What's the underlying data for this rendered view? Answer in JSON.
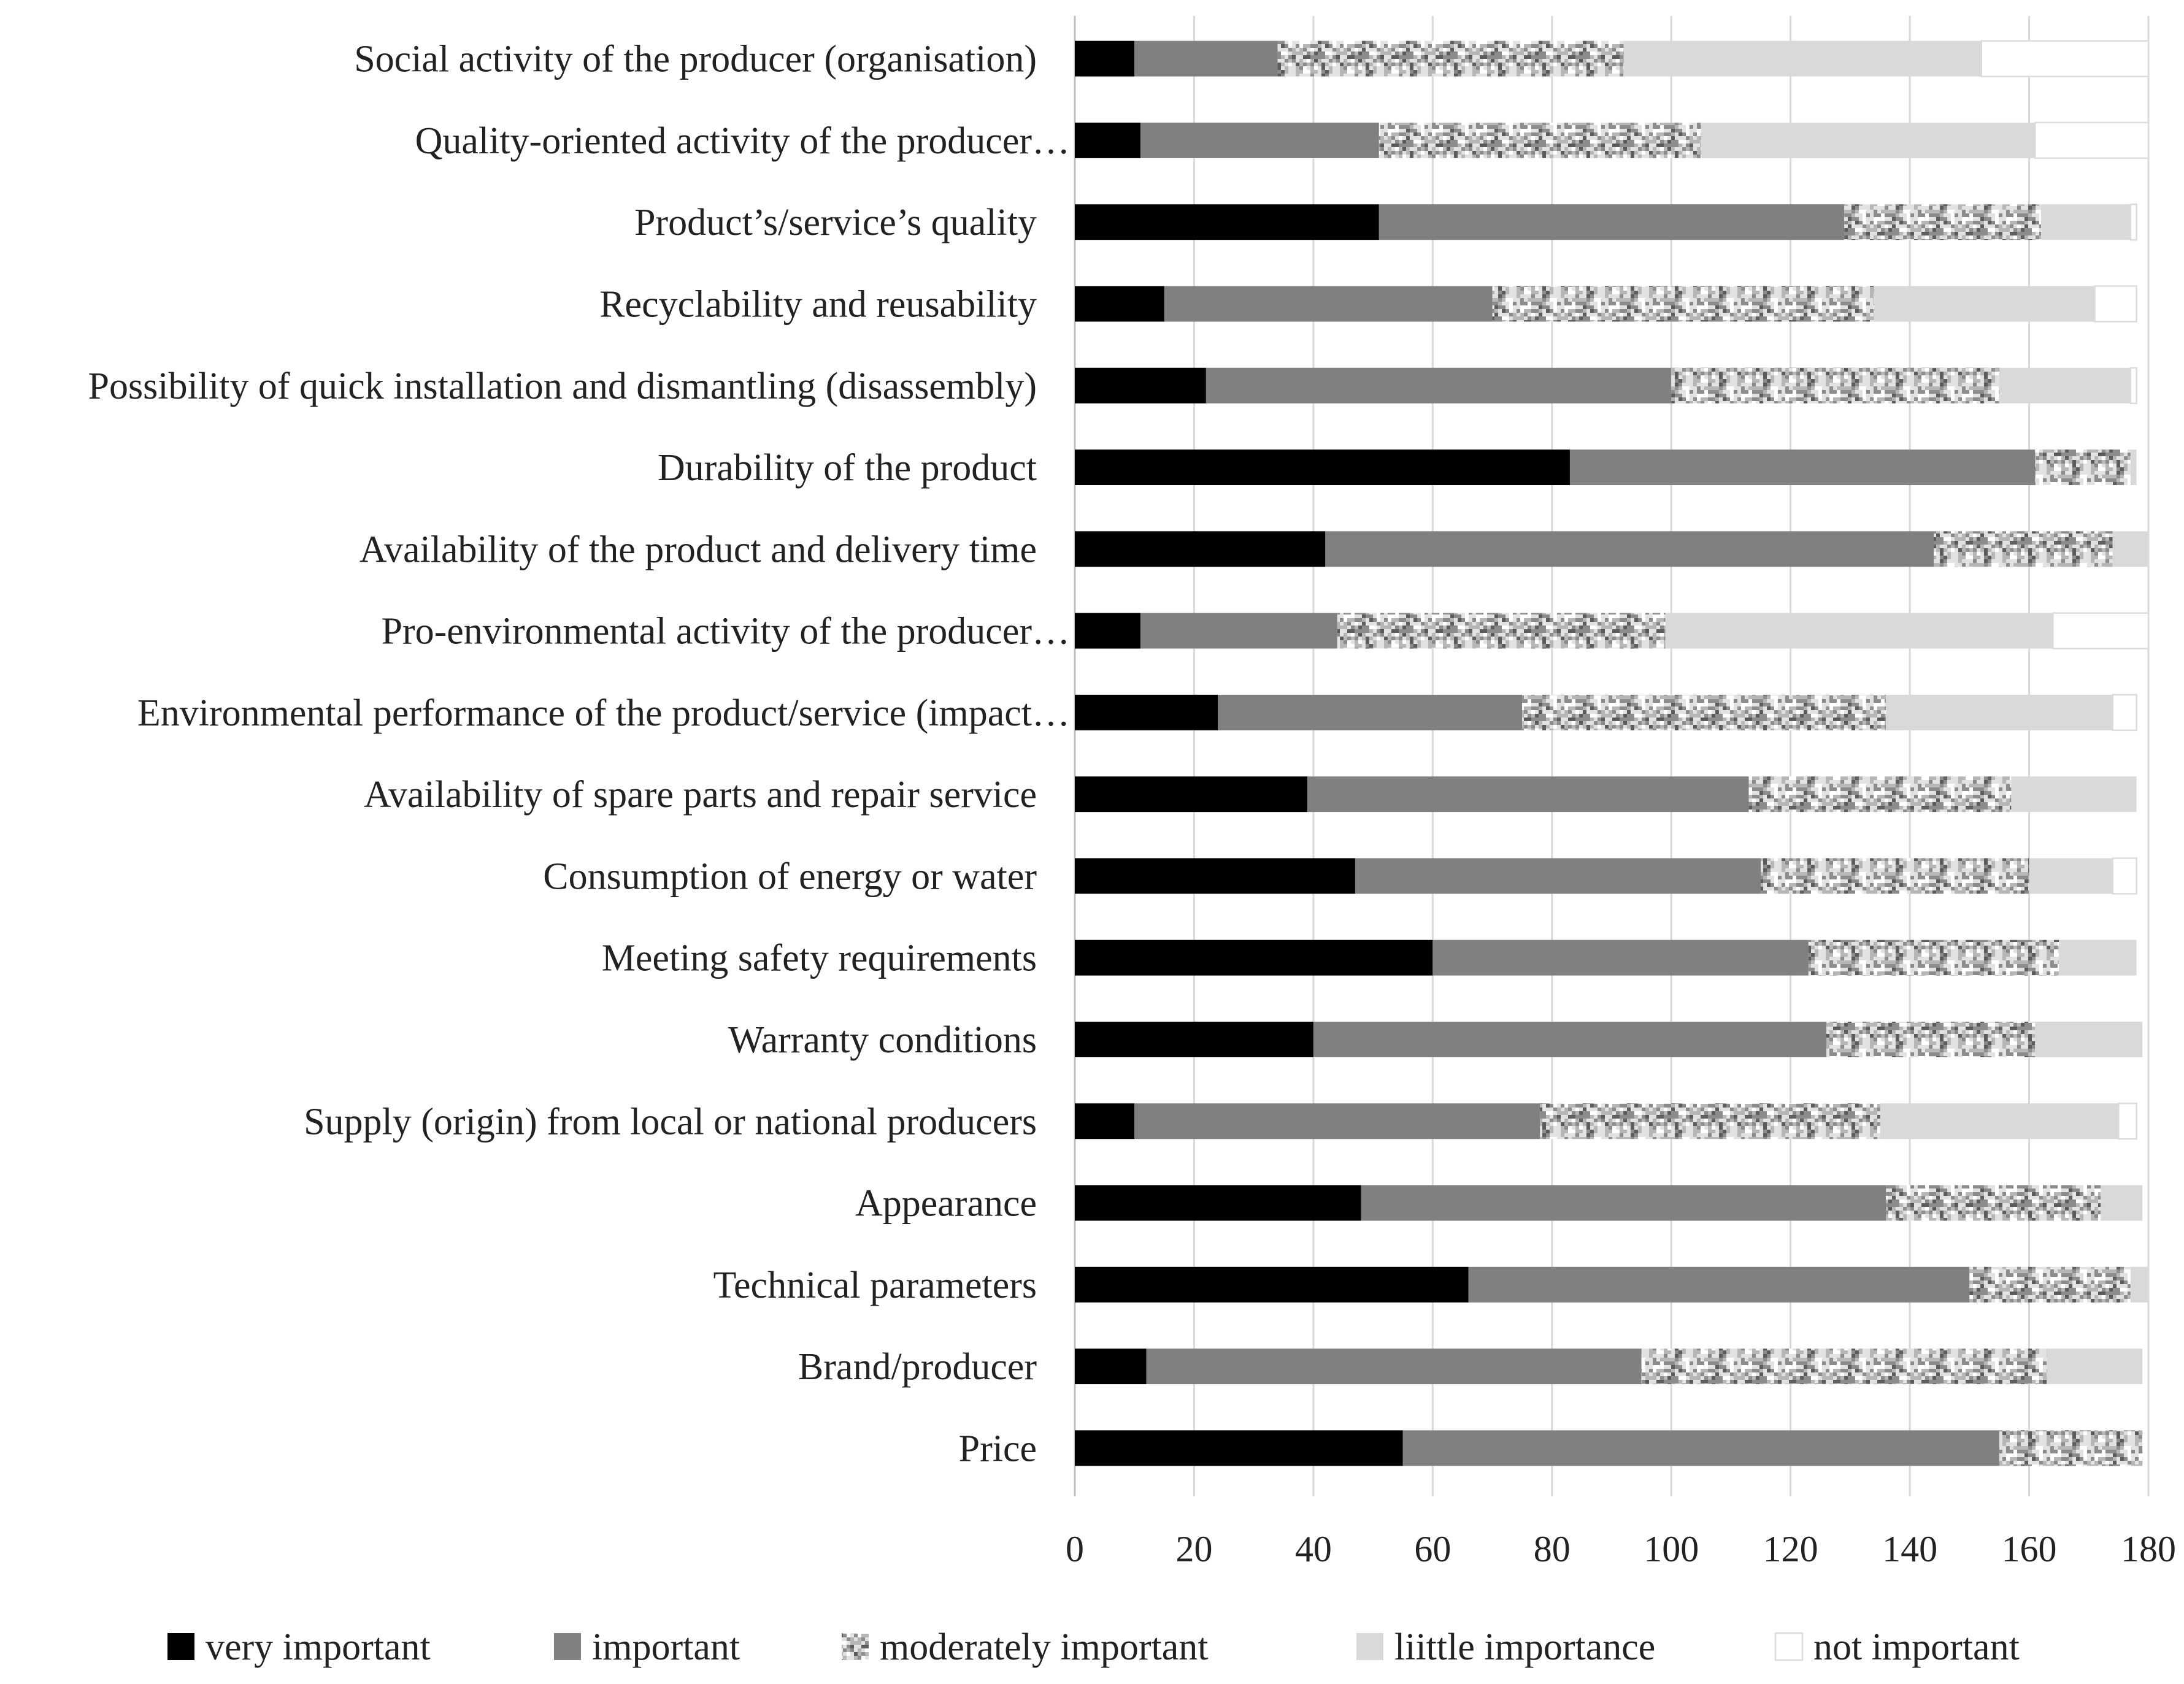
{
  "chart_data": {
    "type": "bar",
    "horizontal": true,
    "stacked": true,
    "title": "",
    "xlabel": "",
    "ylabel": "",
    "xlim": [
      0,
      180
    ],
    "x_ticks": [
      0,
      20,
      40,
      60,
      80,
      100,
      120,
      140,
      160,
      180
    ],
    "grid": true,
    "legend_position": "bottom",
    "categories": [
      "Social activity of the producer (organisation)",
      "Quality-oriented activity of the producer…",
      "Product’s/service’s quality",
      "Recyclability and reusability",
      "Possibility of quick installation and dismantling (disassembly)",
      "Durability of the product",
      "Availability of the product and delivery time",
      "Pro-environmental activity of the producer…",
      "Environmental performance of the product/service (impact…",
      "Availability of spare parts and repair service",
      "Consumption of energy or water",
      "Meeting safety requirements",
      "Warranty conditions",
      "Supply (origin) from local or national producers",
      "Appearance",
      "Technical parameters",
      "Brand/producer",
      "Price"
    ],
    "series": [
      {
        "name": "very important",
        "color": "#000000",
        "values": [
          10,
          11,
          51,
          15,
          22,
          83,
          42,
          11,
          24,
          39,
          47,
          60,
          40,
          10,
          48,
          66,
          12,
          55
        ]
      },
      {
        "name": "important",
        "color": "#808080",
        "values": [
          24,
          40,
          78,
          55,
          78,
          78,
          102,
          33,
          51,
          74,
          68,
          63,
          86,
          68,
          88,
          84,
          83,
          100
        ]
      },
      {
        "name": "moderately important",
        "color": "#c4c4c4",
        "patterned": true,
        "values": [
          58,
          54,
          33,
          64,
          55,
          16,
          30,
          55,
          61,
          44,
          45,
          42,
          35,
          57,
          36,
          27,
          68,
          24
        ]
      },
      {
        "name": "liittle importance",
        "color": "#d9d9d9",
        "values": [
          60,
          56,
          15,
          37,
          22,
          1,
          6,
          65,
          38,
          21,
          14,
          13,
          18,
          40,
          7,
          3,
          16,
          0
        ]
      },
      {
        "name": "not important",
        "color": "#ffffff",
        "values": [
          28,
          19,
          1,
          7,
          1,
          0,
          0,
          16,
          4,
          0,
          4,
          0,
          0,
          3,
          0,
          0,
          0,
          0
        ]
      }
    ]
  }
}
